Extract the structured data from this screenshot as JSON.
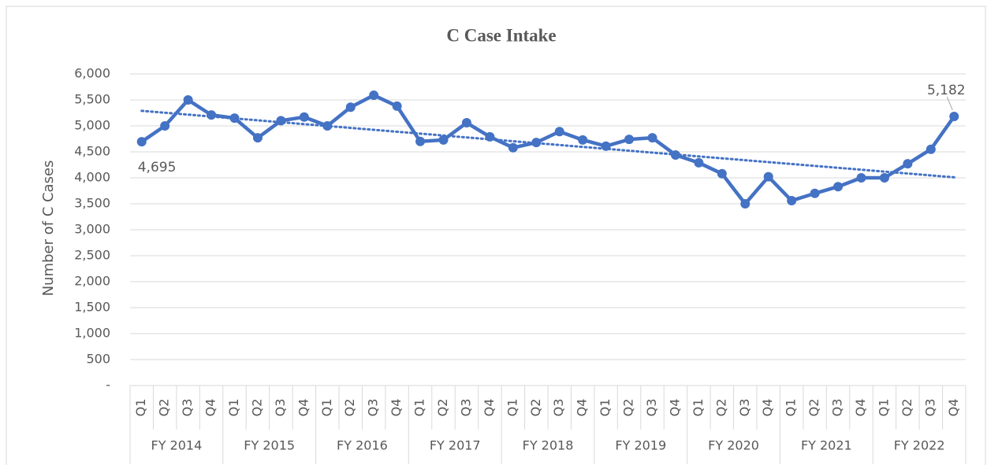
{
  "chart_data": {
    "type": "line",
    "title": "C Case Intake",
    "y_axis_label": "Number of C Cases",
    "categories": [
      "Q1",
      "Q2",
      "Q3",
      "Q4",
      "Q1",
      "Q2",
      "Q3",
      "Q4",
      "Q1",
      "Q2",
      "Q3",
      "Q4",
      "Q1",
      "Q2",
      "Q3",
      "Q4",
      "Q1",
      "Q2",
      "Q3",
      "Q4",
      "Q1",
      "Q2",
      "Q3",
      "Q4",
      "Q1",
      "Q2",
      "Q3",
      "Q4",
      "Q1",
      "Q2",
      "Q3",
      "Q4",
      "Q1",
      "Q2",
      "Q3",
      "Q4"
    ],
    "category_groups": [
      "FY 2014",
      "FY 2015",
      "FY 2016",
      "FY 2017",
      "FY 2018",
      "FY 2019",
      "FY 2020",
      "FY 2021",
      "FY 2022"
    ],
    "values": [
      4695,
      5000,
      5500,
      5210,
      5150,
      4770,
      5100,
      5170,
      5000,
      5360,
      5590,
      5380,
      4700,
      4730,
      5060,
      4790,
      4580,
      4680,
      4890,
      4730,
      4610,
      4740,
      4770,
      4440,
      4290,
      4080,
      3500,
      4020,
      3560,
      3700,
      3830,
      4000,
      4000,
      4270,
      4550,
      5182
    ],
    "value_labels": [
      "4,695",
      null,
      null,
      null,
      null,
      null,
      null,
      null,
      null,
      null,
      null,
      null,
      null,
      null,
      null,
      null,
      null,
      null,
      null,
      null,
      null,
      null,
      null,
      null,
      null,
      null,
      null,
      null,
      null,
      null,
      null,
      null,
      null,
      null,
      null,
      "5,182"
    ],
    "color": "#4472c4",
    "trendline_values": [
      5290,
      4010
    ],
    "ylim": [
      0,
      6000
    ],
    "yticks": [
      {
        "value": 0,
        "label": "-"
      },
      500,
      {
        "value": 1000,
        "label": "1,000"
      },
      {
        "value": 1500,
        "label": "1,500"
      },
      {
        "value": 2000,
        "label": "2,000"
      },
      {
        "value": 2500,
        "label": "2,500"
      },
      {
        "value": 3000,
        "label": "3,000"
      },
      {
        "value": 3500,
        "label": "3,500"
      },
      {
        "value": 4000,
        "label": "4,000"
      },
      {
        "value": 4500,
        "label": "4,500"
      },
      {
        "value": 5000,
        "label": "5,000"
      },
      {
        "value": 5500,
        "label": "5,500"
      },
      {
        "value": 6000,
        "label": "6,000"
      }
    ],
    "grid": true
  }
}
